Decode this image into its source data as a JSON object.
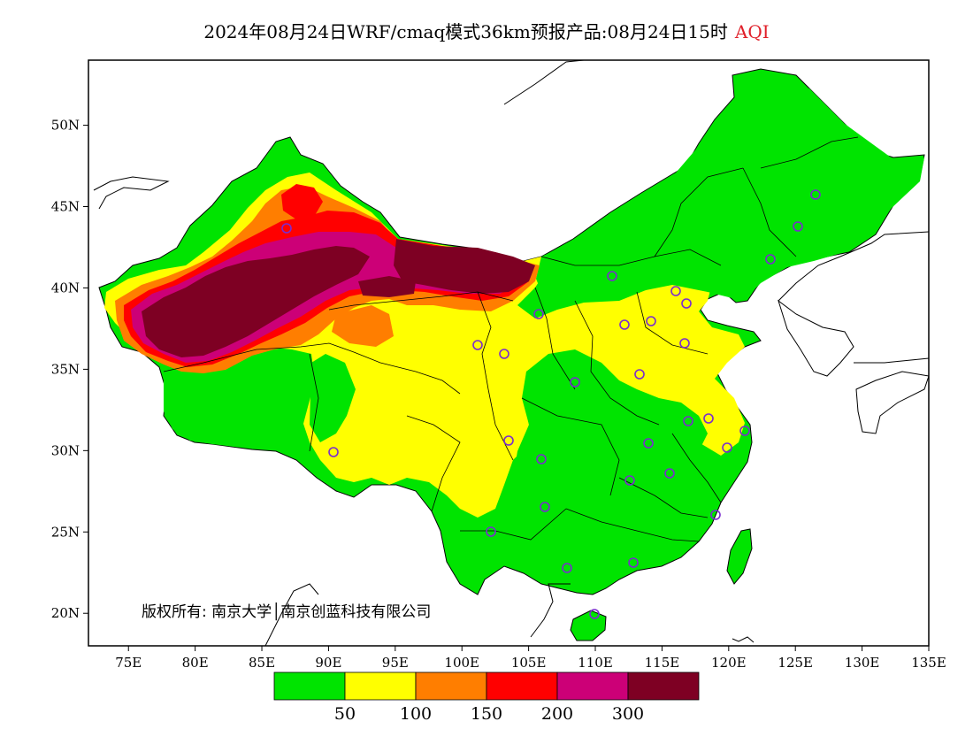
{
  "title": {
    "main": "2024年08月24日WRF/cmaq模式36km预报产品:08月24日15时",
    "variable": "AQI",
    "variable_color": "#e0202a"
  },
  "axes": {
    "lat_labels": [
      "50N",
      "45N",
      "40N",
      "35N",
      "30N",
      "25N",
      "20N"
    ],
    "lon_labels": [
      "75E",
      "80E",
      "85E",
      "90E",
      "95E",
      "100E",
      "105E",
      "110E",
      "115E",
      "120E",
      "125E",
      "130E",
      "135E"
    ],
    "lon_range": [
      72,
      135
    ],
    "lat_range": [
      18,
      54
    ]
  },
  "colorbar": {
    "colors": [
      "#00e400",
      "#ffff00",
      "#ff7e00",
      "#ff0000",
      "#cc0077",
      "#7e0023"
    ],
    "labels": [
      "50",
      "100",
      "150",
      "200",
      "300"
    ],
    "thresholds": [
      50,
      100,
      150,
      200,
      300
    ]
  },
  "copyright": "版权所有: 南京大学│南京创蓝科技有限公司",
  "legend_meaning": {
    "circles": "monitoring-city-markers"
  },
  "colors": {
    "good": "#00e400",
    "moderate": "#ffff00",
    "usg": "#ff7e00",
    "unhealthy": "#ff0000",
    "very_unhealthy": "#cc0077",
    "hazardous": "#7e0023",
    "marker": "#7a2ccf",
    "sea": "#ffffff"
  }
}
